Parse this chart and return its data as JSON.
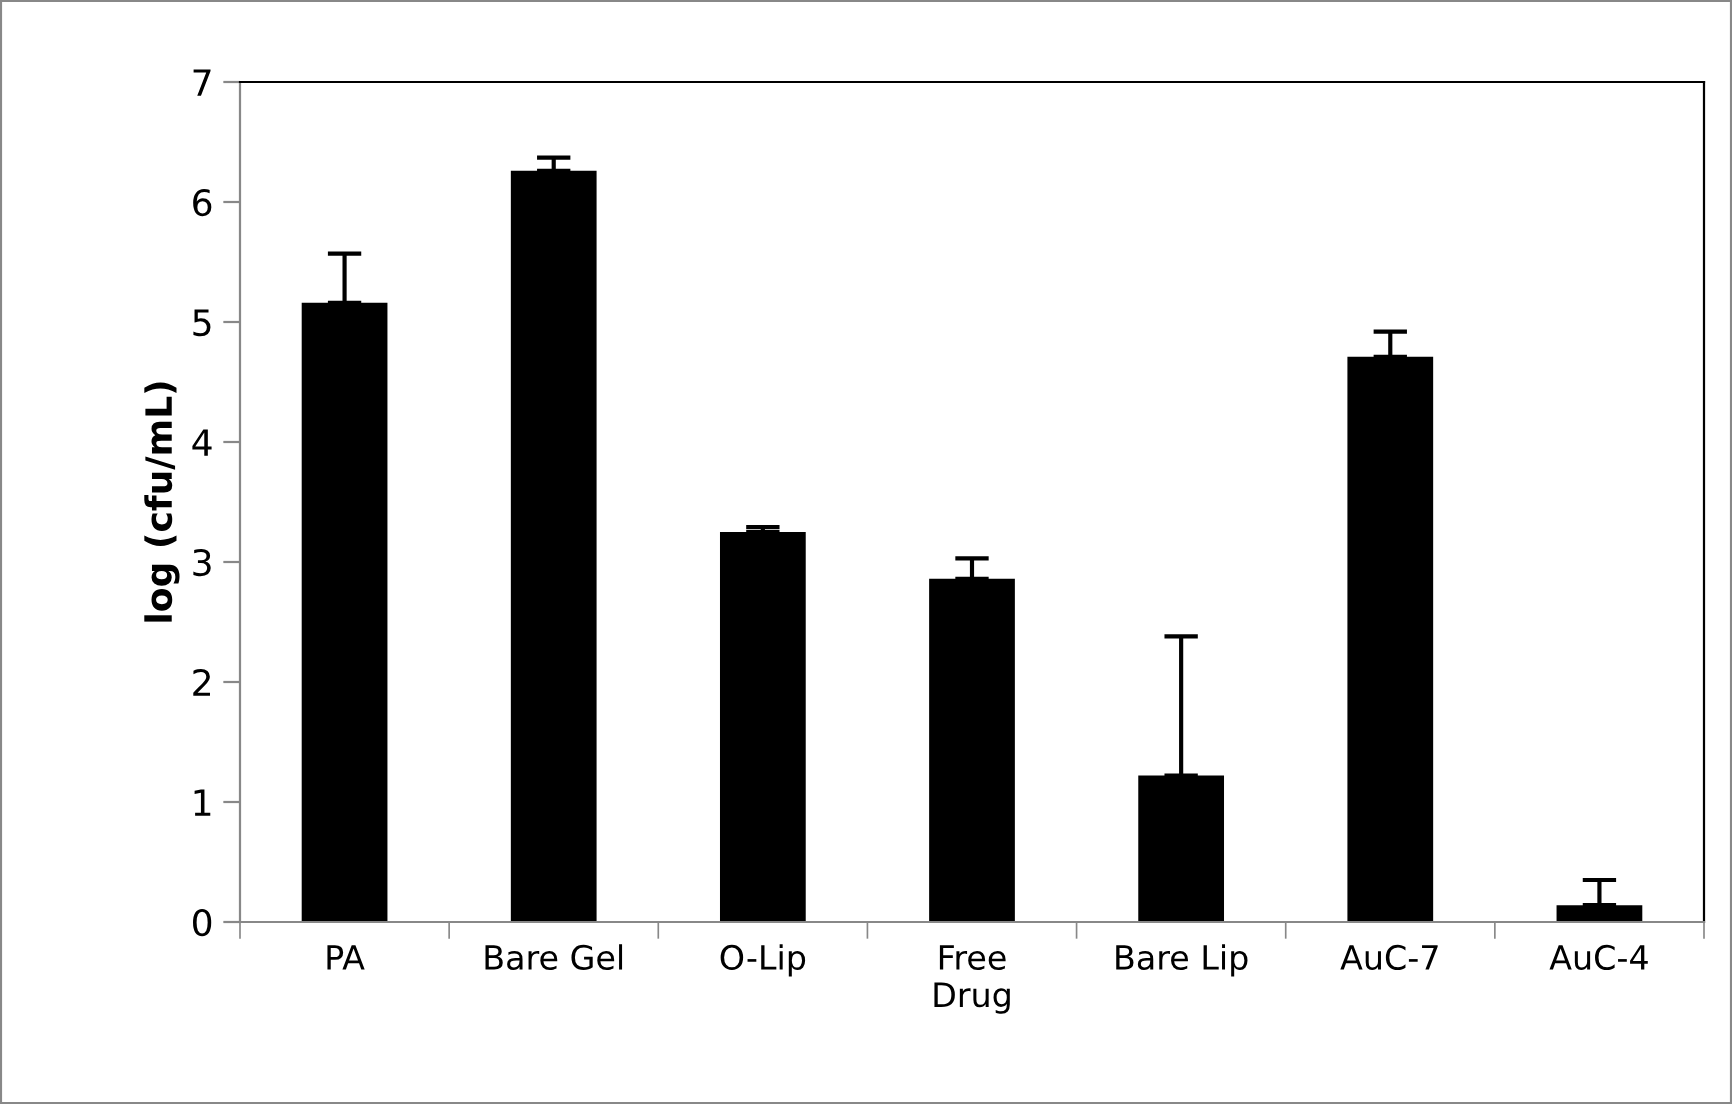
{
  "chart_data": {
    "type": "bar",
    "ylabel": "log (cfu/mL)",
    "categories": [
      "PA",
      "Bare Gel",
      "O-Lip",
      "Free\nDrug",
      "Bare Lip",
      "AuC-7",
      "AuC-4"
    ],
    "values": [
      5.16,
      6.26,
      3.25,
      2.86,
      1.22,
      4.71,
      0.14
    ],
    "errors": [
      [
        5.16,
        5.57
      ],
      [
        6.26,
        6.37
      ],
      [
        3.25,
        3.29
      ],
      [
        2.86,
        3.03
      ],
      [
        1.22,
        2.38
      ],
      [
        4.71,
        4.92
      ],
      [
        0.14,
        0.35
      ]
    ],
    "color": "#000000",
    "ylim": [
      0,
      7
    ],
    "yticks": [
      0,
      1,
      2,
      3,
      4,
      5,
      6,
      7
    ],
    "grid": false,
    "legend": false
  }
}
